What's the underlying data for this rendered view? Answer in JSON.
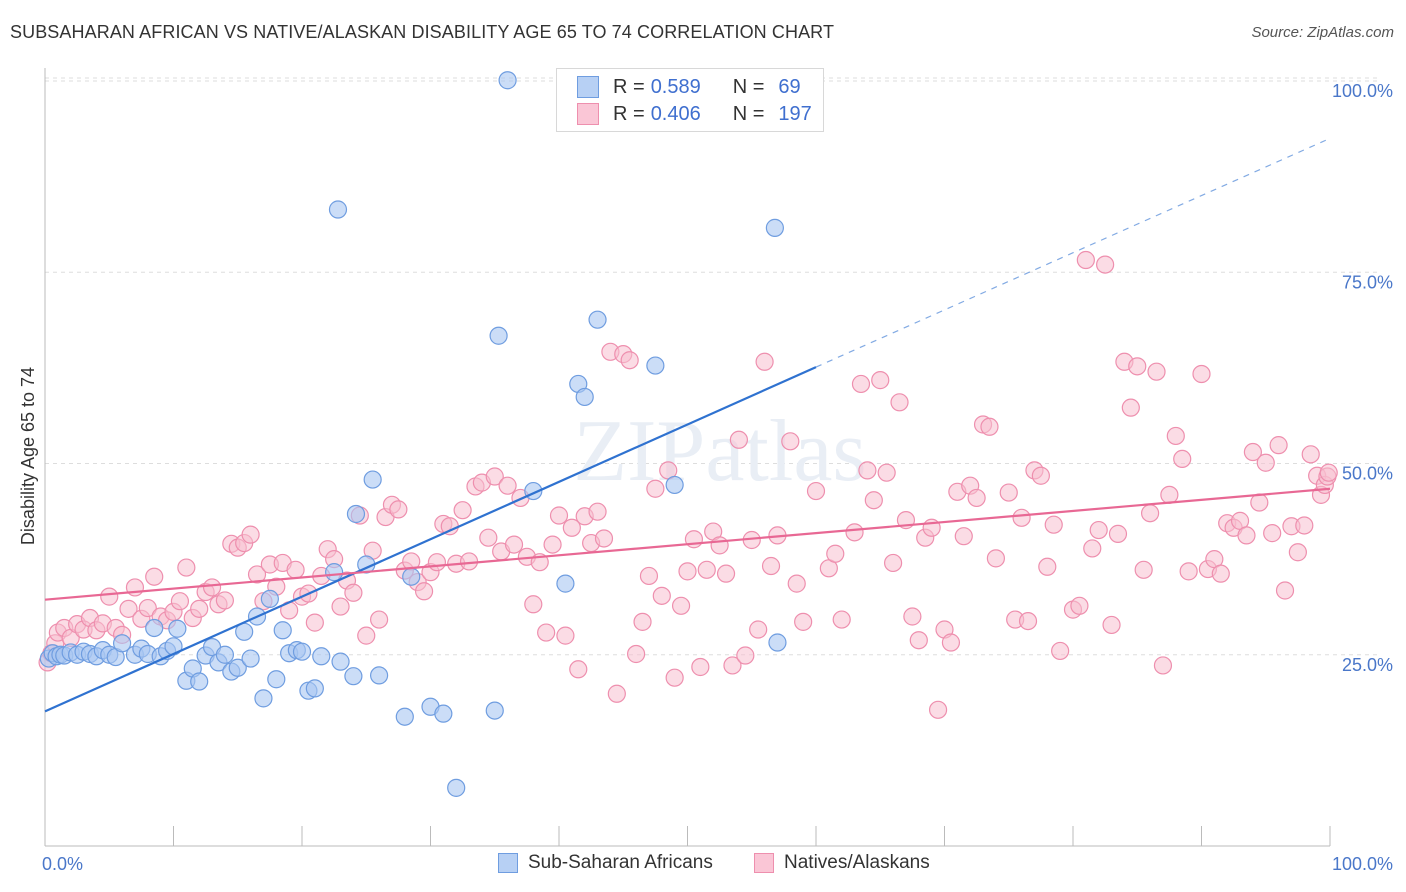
{
  "title": "SUBSAHARAN AFRICAN VS NATIVE/ALASKAN DISABILITY AGE 65 TO 74 CORRELATION CHART",
  "source": "Source: ZipAtlas.com",
  "watermark": "ZIPatlas",
  "legend": {
    "rows": [
      {
        "r_label": "R =",
        "r_value": "0.589",
        "n_label": "N =",
        "n_value": "69",
        "color": "#7aa6e8"
      },
      {
        "r_label": "R =",
        "r_value": "0.406",
        "n_label": "N =",
        "n_value": "197",
        "color": "#f29ab6"
      }
    ]
  },
  "bottom_legend": {
    "series1": "Sub-Saharan Africans",
    "series2": "Natives/Alaskans"
  },
  "colors": {
    "blue_fill": "#a9c7f2",
    "blue_stroke": "#6f9de0",
    "blue_line": "#2f72d0",
    "pink_fill": "#f7bfd0",
    "pink_stroke": "#ee8fae",
    "pink_line": "#e86894",
    "tick_text": "#4a77c9",
    "grid": "#dddddd"
  },
  "chart_data": {
    "type": "scatter",
    "title": "SUBSAHARAN AFRICAN VS NATIVE/ALASKAN DISABILITY AGE 65 TO 74 CORRELATION CHART",
    "xlabel": "",
    "ylabel": "Disability Age 65 to 74",
    "xlim": [
      0,
      100
    ],
    "ylim": [
      0,
      102
    ],
    "x_tick_labels": [
      "0.0%",
      "100.0%"
    ],
    "y_ticks": [
      25,
      50,
      75,
      100
    ],
    "y_tick_labels": [
      "25.0%",
      "50.0%",
      "75.0%",
      "100.0%"
    ],
    "grid": true,
    "legend_position": "top-center",
    "series": [
      {
        "name": "Sub-Saharan Africans",
        "r": 0.589,
        "n": 69,
        "trend": {
          "x0": 0,
          "y0": 17.6,
          "x1": 60,
          "y1": 62.6,
          "dashed_to_x": 100,
          "dashed_to_y": 92.5
        },
        "points": [
          [
            0.3,
            24.5
          ],
          [
            0.6,
            25.2
          ],
          [
            0.9,
            24.8
          ],
          [
            1.2,
            25.0
          ],
          [
            1.5,
            24.9
          ],
          [
            2.0,
            25.3
          ],
          [
            2.5,
            25.0
          ],
          [
            3.0,
            25.4
          ],
          [
            3.5,
            25.1
          ],
          [
            4.0,
            24.8
          ],
          [
            4.5,
            25.6
          ],
          [
            5.0,
            25.0
          ],
          [
            5.5,
            24.7
          ],
          [
            6.0,
            26.5
          ],
          [
            7.0,
            25.0
          ],
          [
            7.5,
            25.8
          ],
          [
            8.0,
            25.1
          ],
          [
            8.5,
            28.5
          ],
          [
            9.0,
            24.8
          ],
          [
            9.5,
            25.5
          ],
          [
            10.0,
            26.1
          ],
          [
            10.3,
            28.4
          ],
          [
            11.0,
            21.6
          ],
          [
            11.5,
            23.2
          ],
          [
            12.0,
            21.5
          ],
          [
            12.5,
            24.9
          ],
          [
            13.0,
            26.0
          ],
          [
            13.5,
            24.0
          ],
          [
            14.0,
            25.0
          ],
          [
            14.5,
            22.8
          ],
          [
            15.0,
            23.3
          ],
          [
            15.5,
            28.0
          ],
          [
            16.0,
            24.5
          ],
          [
            16.5,
            30.0
          ],
          [
            17.0,
            19.3
          ],
          [
            17.5,
            32.3
          ],
          [
            18.0,
            21.8
          ],
          [
            18.5,
            28.2
          ],
          [
            19.0,
            25.2
          ],
          [
            19.6,
            25.6
          ],
          [
            20.0,
            25.4
          ],
          [
            20.5,
            20.3
          ],
          [
            21.0,
            20.6
          ],
          [
            21.5,
            24.8
          ],
          [
            22.5,
            35.8
          ],
          [
            23.0,
            24.1
          ],
          [
            24.0,
            22.2
          ],
          [
            24.2,
            43.4
          ],
          [
            25.0,
            36.8
          ],
          [
            25.5,
            47.9
          ],
          [
            26.0,
            22.3
          ],
          [
            28.0,
            16.9
          ],
          [
            28.5,
            35.2
          ],
          [
            30.0,
            18.2
          ],
          [
            31.0,
            17.3
          ],
          [
            32.0,
            7.6
          ],
          [
            35.0,
            17.7
          ],
          [
            35.3,
            66.7
          ],
          [
            36.0,
            100.1
          ],
          [
            38.0,
            46.4
          ],
          [
            40.5,
            34.3
          ],
          [
            41.5,
            60.4
          ],
          [
            42.0,
            58.7
          ],
          [
            43.0,
            68.8
          ],
          [
            47.5,
            62.8
          ],
          [
            49.0,
            47.2
          ],
          [
            56.8,
            80.8
          ],
          [
            57.0,
            26.6
          ],
          [
            22.8,
            83.2
          ]
        ]
      },
      {
        "name": "Natives/Alaskans",
        "r": 0.406,
        "n": 197,
        "trend": {
          "x0": 0,
          "y0": 32.2,
          "x1": 100,
          "y1": 46.7
        },
        "points": [
          [
            0.2,
            24.0
          ],
          [
            0.5,
            25.2
          ],
          [
            0.8,
            26.5
          ],
          [
            1.0,
            27.9
          ],
          [
            1.5,
            28.5
          ],
          [
            2.0,
            27.2
          ],
          [
            2.5,
            29.0
          ],
          [
            3.0,
            28.3
          ],
          [
            3.5,
            29.8
          ],
          [
            4.0,
            28.2
          ],
          [
            4.5,
            29.1
          ],
          [
            5.0,
            32.6
          ],
          [
            5.5,
            28.5
          ],
          [
            6.0,
            27.6
          ],
          [
            6.5,
            31.0
          ],
          [
            7.0,
            33.8
          ],
          [
            7.5,
            29.7
          ],
          [
            8.0,
            31.1
          ],
          [
            8.5,
            35.2
          ],
          [
            9.0,
            30.0
          ],
          [
            9.5,
            29.5
          ],
          [
            10.0,
            30.6
          ],
          [
            10.5,
            32.0
          ],
          [
            11.0,
            36.4
          ],
          [
            11.5,
            29.8
          ],
          [
            12.0,
            31.0
          ],
          [
            12.5,
            33.2
          ],
          [
            13.0,
            33.8
          ],
          [
            13.5,
            31.6
          ],
          [
            14.0,
            32.1
          ],
          [
            14.5,
            39.5
          ],
          [
            15.0,
            39.0
          ],
          [
            15.5,
            39.6
          ],
          [
            16.0,
            40.7
          ],
          [
            16.5,
            35.5
          ],
          [
            17.0,
            32.0
          ],
          [
            17.5,
            36.8
          ],
          [
            18.0,
            33.9
          ],
          [
            18.5,
            37.0
          ],
          [
            19.0,
            30.8
          ],
          [
            19.5,
            36.1
          ],
          [
            20.0,
            32.6
          ],
          [
            20.5,
            33.0
          ],
          [
            21.0,
            29.2
          ],
          [
            21.5,
            35.3
          ],
          [
            22.0,
            38.8
          ],
          [
            22.5,
            37.5
          ],
          [
            23.0,
            31.3
          ],
          [
            23.5,
            34.7
          ],
          [
            24.0,
            33.1
          ],
          [
            24.5,
            43.2
          ],
          [
            25.0,
            27.5
          ],
          [
            25.5,
            38.6
          ],
          [
            26.0,
            29.6
          ],
          [
            26.5,
            43.0
          ],
          [
            27.0,
            44.6
          ],
          [
            27.5,
            44.0
          ],
          [
            28.0,
            36.0
          ],
          [
            28.5,
            37.2
          ],
          [
            29.0,
            34.5
          ],
          [
            29.5,
            33.3
          ],
          [
            30.0,
            35.8
          ],
          [
            30.5,
            37.1
          ],
          [
            31.0,
            42.1
          ],
          [
            31.5,
            41.8
          ],
          [
            32.0,
            36.9
          ],
          [
            32.5,
            43.9
          ],
          [
            33.0,
            37.2
          ],
          [
            33.5,
            47.0
          ],
          [
            34.0,
            47.5
          ],
          [
            34.5,
            40.3
          ],
          [
            35.0,
            48.3
          ],
          [
            35.5,
            38.5
          ],
          [
            36.0,
            47.1
          ],
          [
            36.5,
            39.4
          ],
          [
            37.0,
            45.5
          ],
          [
            37.5,
            37.8
          ],
          [
            38.0,
            31.6
          ],
          [
            38.5,
            37.1
          ],
          [
            39.0,
            27.9
          ],
          [
            39.5,
            39.4
          ],
          [
            40.0,
            43.2
          ],
          [
            40.5,
            27.5
          ],
          [
            41.0,
            41.6
          ],
          [
            41.5,
            23.1
          ],
          [
            42.0,
            43.1
          ],
          [
            42.5,
            39.6
          ],
          [
            43.0,
            43.7
          ],
          [
            43.5,
            40.2
          ],
          [
            44.0,
            64.6
          ],
          [
            44.5,
            19.9
          ],
          [
            45.0,
            64.3
          ],
          [
            45.5,
            63.5
          ],
          [
            46.0,
            25.1
          ],
          [
            46.5,
            29.3
          ],
          [
            47.0,
            35.3
          ],
          [
            47.5,
            46.7
          ],
          [
            48.0,
            32.7
          ],
          [
            48.5,
            49.1
          ],
          [
            49.0,
            22.0
          ],
          [
            49.5,
            31.4
          ],
          [
            50.0,
            35.9
          ],
          [
            50.5,
            40.1
          ],
          [
            51.0,
            23.4
          ],
          [
            51.5,
            36.1
          ],
          [
            52.0,
            41.1
          ],
          [
            52.5,
            39.3
          ],
          [
            53.0,
            35.6
          ],
          [
            53.5,
            23.6
          ],
          [
            54.0,
            53.1
          ],
          [
            54.5,
            24.9
          ],
          [
            55.0,
            40.0
          ],
          [
            55.5,
            28.3
          ],
          [
            56.0,
            63.3
          ],
          [
            56.5,
            36.6
          ],
          [
            57.0,
            40.6
          ],
          [
            58.0,
            52.9
          ],
          [
            58.5,
            34.3
          ],
          [
            59.0,
            29.3
          ],
          [
            60.0,
            46.4
          ],
          [
            61.0,
            36.3
          ],
          [
            61.5,
            38.2
          ],
          [
            62.0,
            29.6
          ],
          [
            63.0,
            41.0
          ],
          [
            63.5,
            60.4
          ],
          [
            64.0,
            49.1
          ],
          [
            64.5,
            45.2
          ],
          [
            65.0,
            60.9
          ],
          [
            65.5,
            48.8
          ],
          [
            66.0,
            37.0
          ],
          [
            66.5,
            58.0
          ],
          [
            67.0,
            42.6
          ],
          [
            67.5,
            30.0
          ],
          [
            68.0,
            26.9
          ],
          [
            68.5,
            40.3
          ],
          [
            69.0,
            41.6
          ],
          [
            69.5,
            17.8
          ],
          [
            70.0,
            28.3
          ],
          [
            70.5,
            26.6
          ],
          [
            71.0,
            46.3
          ],
          [
            71.5,
            40.5
          ],
          [
            72.0,
            47.1
          ],
          [
            72.5,
            45.5
          ],
          [
            73.0,
            55.1
          ],
          [
            73.5,
            54.8
          ],
          [
            74.0,
            37.6
          ],
          [
            75.0,
            46.2
          ],
          [
            75.5,
            29.6
          ],
          [
            76.0,
            42.9
          ],
          [
            76.5,
            29.4
          ],
          [
            77.0,
            49.1
          ],
          [
            77.5,
            48.4
          ],
          [
            78.0,
            36.5
          ],
          [
            78.5,
            42.0
          ],
          [
            79.0,
            25.5
          ],
          [
            80.0,
            30.9
          ],
          [
            80.5,
            31.4
          ],
          [
            81.0,
            76.6
          ],
          [
            81.5,
            38.9
          ],
          [
            82.0,
            41.3
          ],
          [
            82.5,
            76.0
          ],
          [
            83.0,
            28.9
          ],
          [
            83.5,
            40.8
          ],
          [
            84.0,
            63.3
          ],
          [
            84.5,
            57.3
          ],
          [
            85.0,
            62.7
          ],
          [
            85.5,
            36.1
          ],
          [
            86.0,
            43.5
          ],
          [
            86.5,
            62.0
          ],
          [
            87.0,
            23.6
          ],
          [
            87.5,
            45.9
          ],
          [
            88.0,
            53.6
          ],
          [
            88.5,
            50.6
          ],
          [
            89.0,
            35.9
          ],
          [
            90.0,
            61.7
          ],
          [
            90.5,
            36.2
          ],
          [
            91.0,
            37.5
          ],
          [
            91.5,
            35.6
          ],
          [
            92.0,
            42.2
          ],
          [
            92.5,
            41.6
          ],
          [
            93.0,
            42.5
          ],
          [
            93.5,
            40.6
          ],
          [
            94.0,
            51.5
          ],
          [
            94.5,
            44.9
          ],
          [
            95.0,
            50.1
          ],
          [
            95.5,
            40.9
          ],
          [
            96.0,
            52.4
          ],
          [
            96.5,
            33.4
          ],
          [
            97.0,
            41.8
          ],
          [
            97.5,
            38.4
          ],
          [
            98.0,
            41.9
          ],
          [
            98.5,
            51.2
          ],
          [
            99.0,
            48.4
          ],
          [
            99.3,
            45.9
          ],
          [
            99.6,
            47.2
          ],
          [
            99.8,
            48.3
          ],
          [
            99.9,
            48.8
          ]
        ]
      }
    ]
  }
}
